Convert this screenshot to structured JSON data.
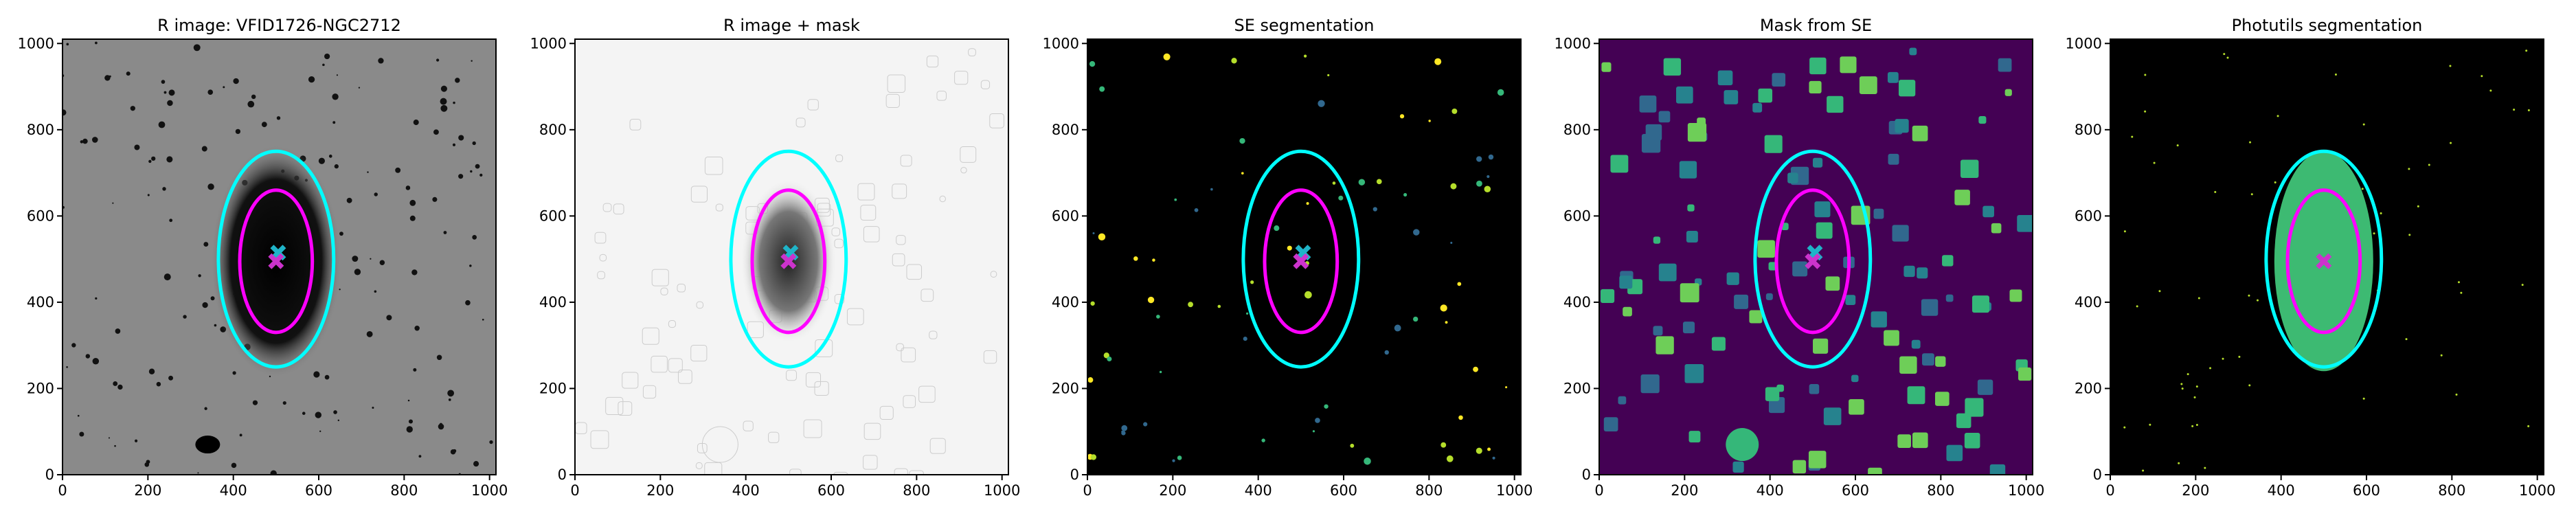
{
  "chart_data": [
    {
      "type": "image",
      "title": "R image: VFID1726-NGC2712",
      "background": "#8a8a8a",
      "xlim": [
        0,
        1015
      ],
      "ylim": [
        0,
        1010
      ],
      "xticks": [
        0,
        200,
        400,
        600,
        800,
        1000
      ],
      "yticks": [
        0,
        200,
        400,
        600,
        800,
        1000
      ],
      "ellipses": [
        {
          "center": [
            500,
            500
          ],
          "semi_axes": [
            135,
            250
          ],
          "color": "#00ffff"
        },
        {
          "center": [
            500,
            495
          ],
          "semi_axes": [
            85,
            165
          ],
          "color": "#ff00ff"
        }
      ],
      "markers": [
        {
          "x": 505,
          "y": 515,
          "color": "#1fb4c8"
        },
        {
          "x": 500,
          "y": 495,
          "color": "#cc33cc"
        }
      ]
    },
    {
      "type": "image",
      "title": "R image + mask",
      "background": "#f4f4f4",
      "xlim": [
        0,
        1015
      ],
      "ylim": [
        0,
        1010
      ],
      "xticks": [
        0,
        200,
        400,
        600,
        800,
        1000
      ],
      "yticks": [
        0,
        200,
        400,
        600,
        800,
        1000
      ],
      "ellipses": [
        {
          "center": [
            500,
            500
          ],
          "semi_axes": [
            135,
            250
          ],
          "color": "#00ffff"
        },
        {
          "center": [
            500,
            495
          ],
          "semi_axes": [
            85,
            165
          ],
          "color": "#ff00ff"
        }
      ],
      "markers": [
        {
          "x": 505,
          "y": 515,
          "color": "#1fb4c8"
        },
        {
          "x": 500,
          "y": 495,
          "color": "#cc33cc"
        }
      ]
    },
    {
      "type": "image",
      "title": "SE segmentation",
      "background": "#000000",
      "xlim": [
        0,
        1015
      ],
      "ylim": [
        0,
        1010
      ],
      "xticks": [
        0,
        200,
        400,
        600,
        800,
        1000
      ],
      "yticks": [
        0,
        200,
        400,
        600,
        800,
        1000
      ],
      "ellipses": [
        {
          "center": [
            500,
            500
          ],
          "semi_axes": [
            135,
            250
          ],
          "color": "#00ffff"
        },
        {
          "center": [
            500,
            495
          ],
          "semi_axes": [
            85,
            165
          ],
          "color": "#ff00ff"
        }
      ],
      "markers": [
        {
          "x": 505,
          "y": 515,
          "color": "#1fb4c8"
        },
        {
          "x": 500,
          "y": 495,
          "color": "#cc33cc"
        }
      ]
    },
    {
      "type": "image",
      "title": "Mask from SE",
      "background": "#440154",
      "xlim": [
        0,
        1015
      ],
      "ylim": [
        0,
        1010
      ],
      "xticks": [
        0,
        200,
        400,
        600,
        800,
        1000
      ],
      "yticks": [
        0,
        200,
        400,
        600,
        800,
        1000
      ],
      "ellipses": [
        {
          "center": [
            500,
            500
          ],
          "semi_axes": [
            135,
            250
          ],
          "color": "#00ffff"
        },
        {
          "center": [
            500,
            495
          ],
          "semi_axes": [
            85,
            165
          ],
          "color": "#ff00ff"
        }
      ],
      "markers": [
        {
          "x": 505,
          "y": 515,
          "color": "#1fb4c8"
        },
        {
          "x": 500,
          "y": 495,
          "color": "#cc33cc"
        }
      ]
    },
    {
      "type": "image",
      "title": "Photutils segmentation",
      "background": "#000000",
      "xlim": [
        0,
        1015
      ],
      "ylim": [
        0,
        1010
      ],
      "xticks": [
        0,
        200,
        400,
        600,
        800,
        1000
      ],
      "yticks": [
        0,
        200,
        400,
        600,
        800,
        1000
      ],
      "ellipses": [
        {
          "center": [
            500,
            500
          ],
          "semi_axes": [
            135,
            250
          ],
          "color": "#00ffff"
        },
        {
          "center": [
            500,
            495
          ],
          "semi_axes": [
            85,
            165
          ],
          "color": "#ff00ff"
        }
      ],
      "markers": [
        {
          "x": 500,
          "y": 495,
          "color": "#cc33cc"
        }
      ]
    }
  ]
}
